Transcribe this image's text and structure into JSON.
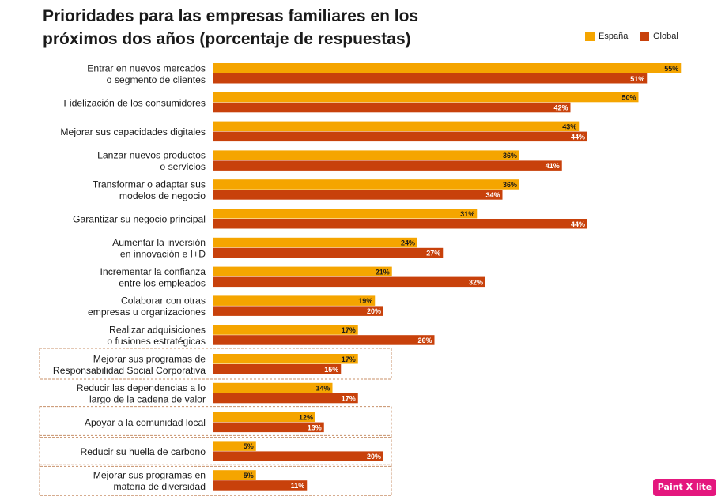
{
  "title_line1": "Prioridades para las empresas familiares en los",
  "title_line2": "próximos dos años (porcentaje de respuestas)",
  "badge": "Paint X lite",
  "colors": {
    "espana": "#f5a500",
    "global": "#c8410b",
    "dashed_box": "#c8906a"
  },
  "chart_data": {
    "type": "bar",
    "orientation": "horizontal",
    "title": "Prioridades para las empresas familiares en los próximos dos años (porcentaje de respuestas)",
    "legend_position": "top-right",
    "grid": false,
    "xlim": [
      0,
      60
    ],
    "value_suffix": "%",
    "categories": [
      [
        "Entrar en nuevos mercados",
        "o segmento de clientes"
      ],
      [
        "Fidelización de los consumidores"
      ],
      [
        "Mejorar sus capacidades digitales"
      ],
      [
        "Lanzar nuevos productos",
        "o servicios"
      ],
      [
        "Transformar  o adaptar sus",
        "modelos de negocio"
      ],
      [
        "Garantizar  su negocio principal"
      ],
      [
        "Aumentar  la inversión",
        "en innovación e I+D"
      ],
      [
        "Incrementar  la confianza",
        "entre los empleados"
      ],
      [
        "Colaborar con otras",
        "empresas  u organizaciones"
      ],
      [
        "Realizar adquisiciones",
        "o fusiones estratégicas"
      ],
      [
        "Mejorar sus programas de",
        "Responsabilidad  Social Corporativa"
      ],
      [
        "Reducir las dependencias  a lo",
        "largo de la cadena de valor"
      ],
      [
        "Apoyar a la comunidad  local"
      ],
      [
        "Reducir su huella de carbono"
      ],
      [
        "Mejorar sus programas  en",
        "materia de diversidad"
      ]
    ],
    "highlighted_categories": [
      10,
      12,
      13,
      14
    ],
    "series": [
      {
        "name": "España",
        "values": [
          55,
          50,
          43,
          36,
          36,
          31,
          24,
          21,
          19,
          17,
          17,
          14,
          12,
          5,
          5
        ]
      },
      {
        "name": "Global",
        "values": [
          51,
          42,
          44,
          41,
          34,
          44,
          27,
          32,
          20,
          26,
          15,
          17,
          13,
          20,
          11
        ]
      }
    ]
  }
}
